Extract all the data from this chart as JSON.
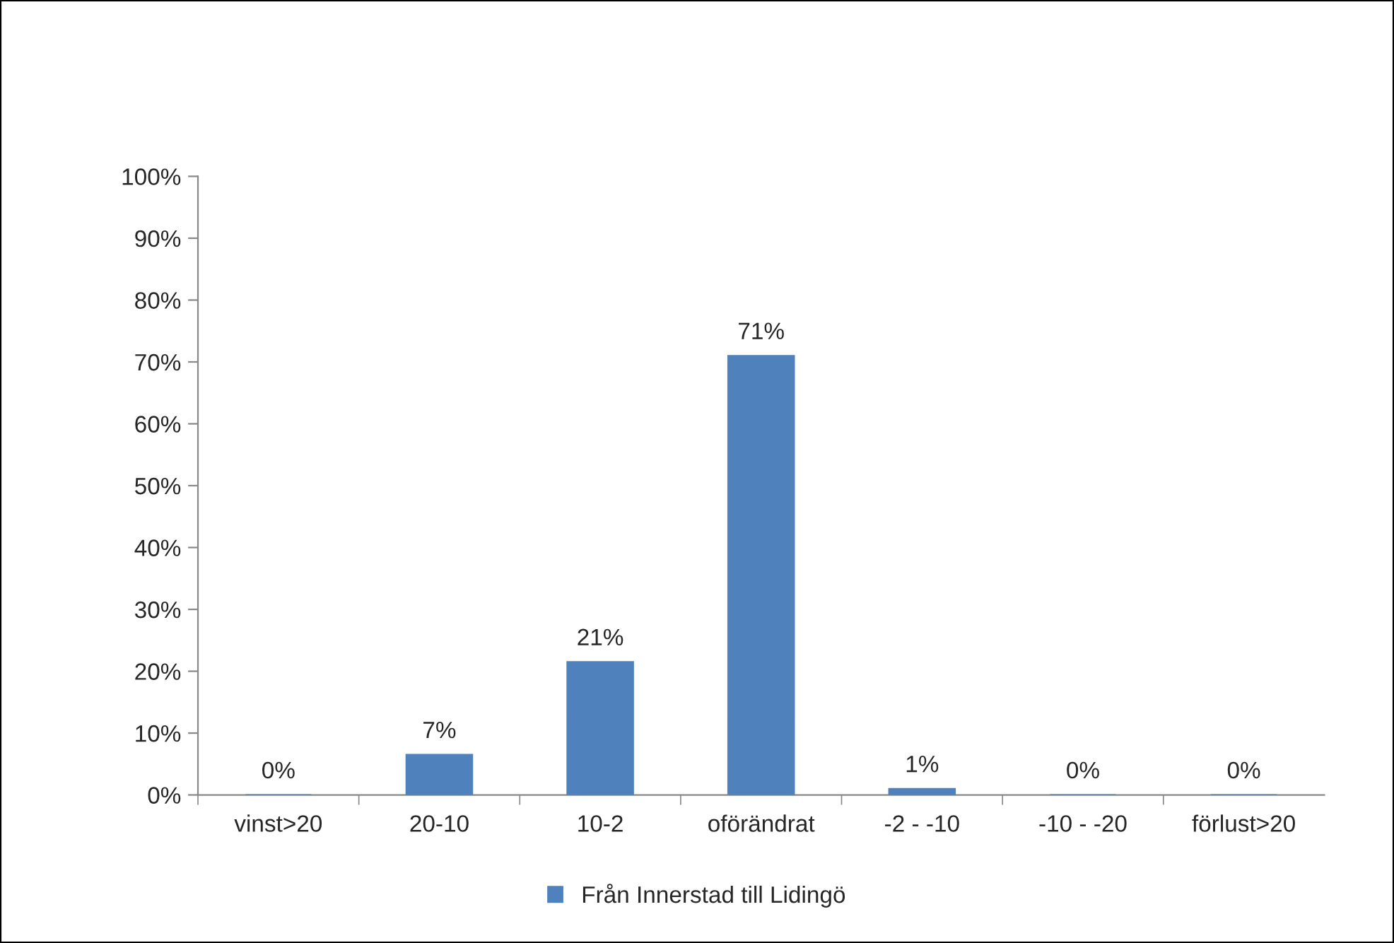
{
  "chart_data": {
    "type": "bar",
    "categories": [
      "vinst>20",
      "20-10",
      "10-2",
      "oförändrat",
      "-2 - -10",
      "-10 - -20",
      "förlust>20"
    ],
    "series": [
      {
        "name": "Från Innerstad till Lidingö",
        "color": "#4f81bd",
        "values": [
          0,
          6.5,
          21.5,
          71,
          1,
          0,
          0
        ],
        "value_labels": [
          "0%",
          "7%",
          "21%",
          "71%",
          "1%",
          "0%",
          "0%"
        ]
      }
    ],
    "ylim": [
      0,
      100
    ],
    "yticks": [
      {
        "value": 0,
        "label": "0%"
      },
      {
        "value": 10,
        "label": "10%"
      },
      {
        "value": 20,
        "label": "20%"
      },
      {
        "value": 30,
        "label": "30%"
      },
      {
        "value": 40,
        "label": "40%"
      },
      {
        "value": 50,
        "label": "50%"
      },
      {
        "value": 60,
        "label": "60%"
      },
      {
        "value": 70,
        "label": "70%"
      },
      {
        "value": 80,
        "label": "80%"
      },
      {
        "value": 90,
        "label": "90%"
      },
      {
        "value": 100,
        "label": "100%"
      }
    ],
    "legend": "bottom",
    "grid": false
  }
}
